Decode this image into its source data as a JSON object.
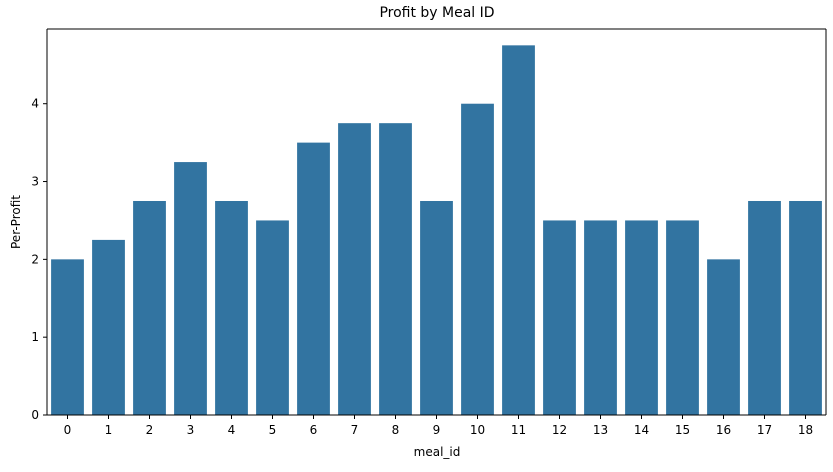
{
  "chart_data": {
    "type": "bar",
    "title": "Profit by Meal ID",
    "xlabel": "meal_id",
    "ylabel": "Per-Profit",
    "categories": [
      "0",
      "1",
      "2",
      "3",
      "4",
      "5",
      "6",
      "7",
      "8",
      "9",
      "10",
      "11",
      "12",
      "13",
      "14",
      "15",
      "16",
      "17",
      "18"
    ],
    "values": [
      2.0,
      2.25,
      2.75,
      3.25,
      2.75,
      2.5,
      3.5,
      3.75,
      3.75,
      2.75,
      4.0,
      4.75,
      2.5,
      2.5,
      2.5,
      2.5,
      2.0,
      2.75,
      2.75
    ],
    "ylim": [
      0,
      4.96
    ],
    "yticks": [
      "0",
      "1",
      "2",
      "3",
      "4"
    ],
    "grid": false,
    "bar_color": "#3274a1",
    "axis_color": "#000000"
  }
}
